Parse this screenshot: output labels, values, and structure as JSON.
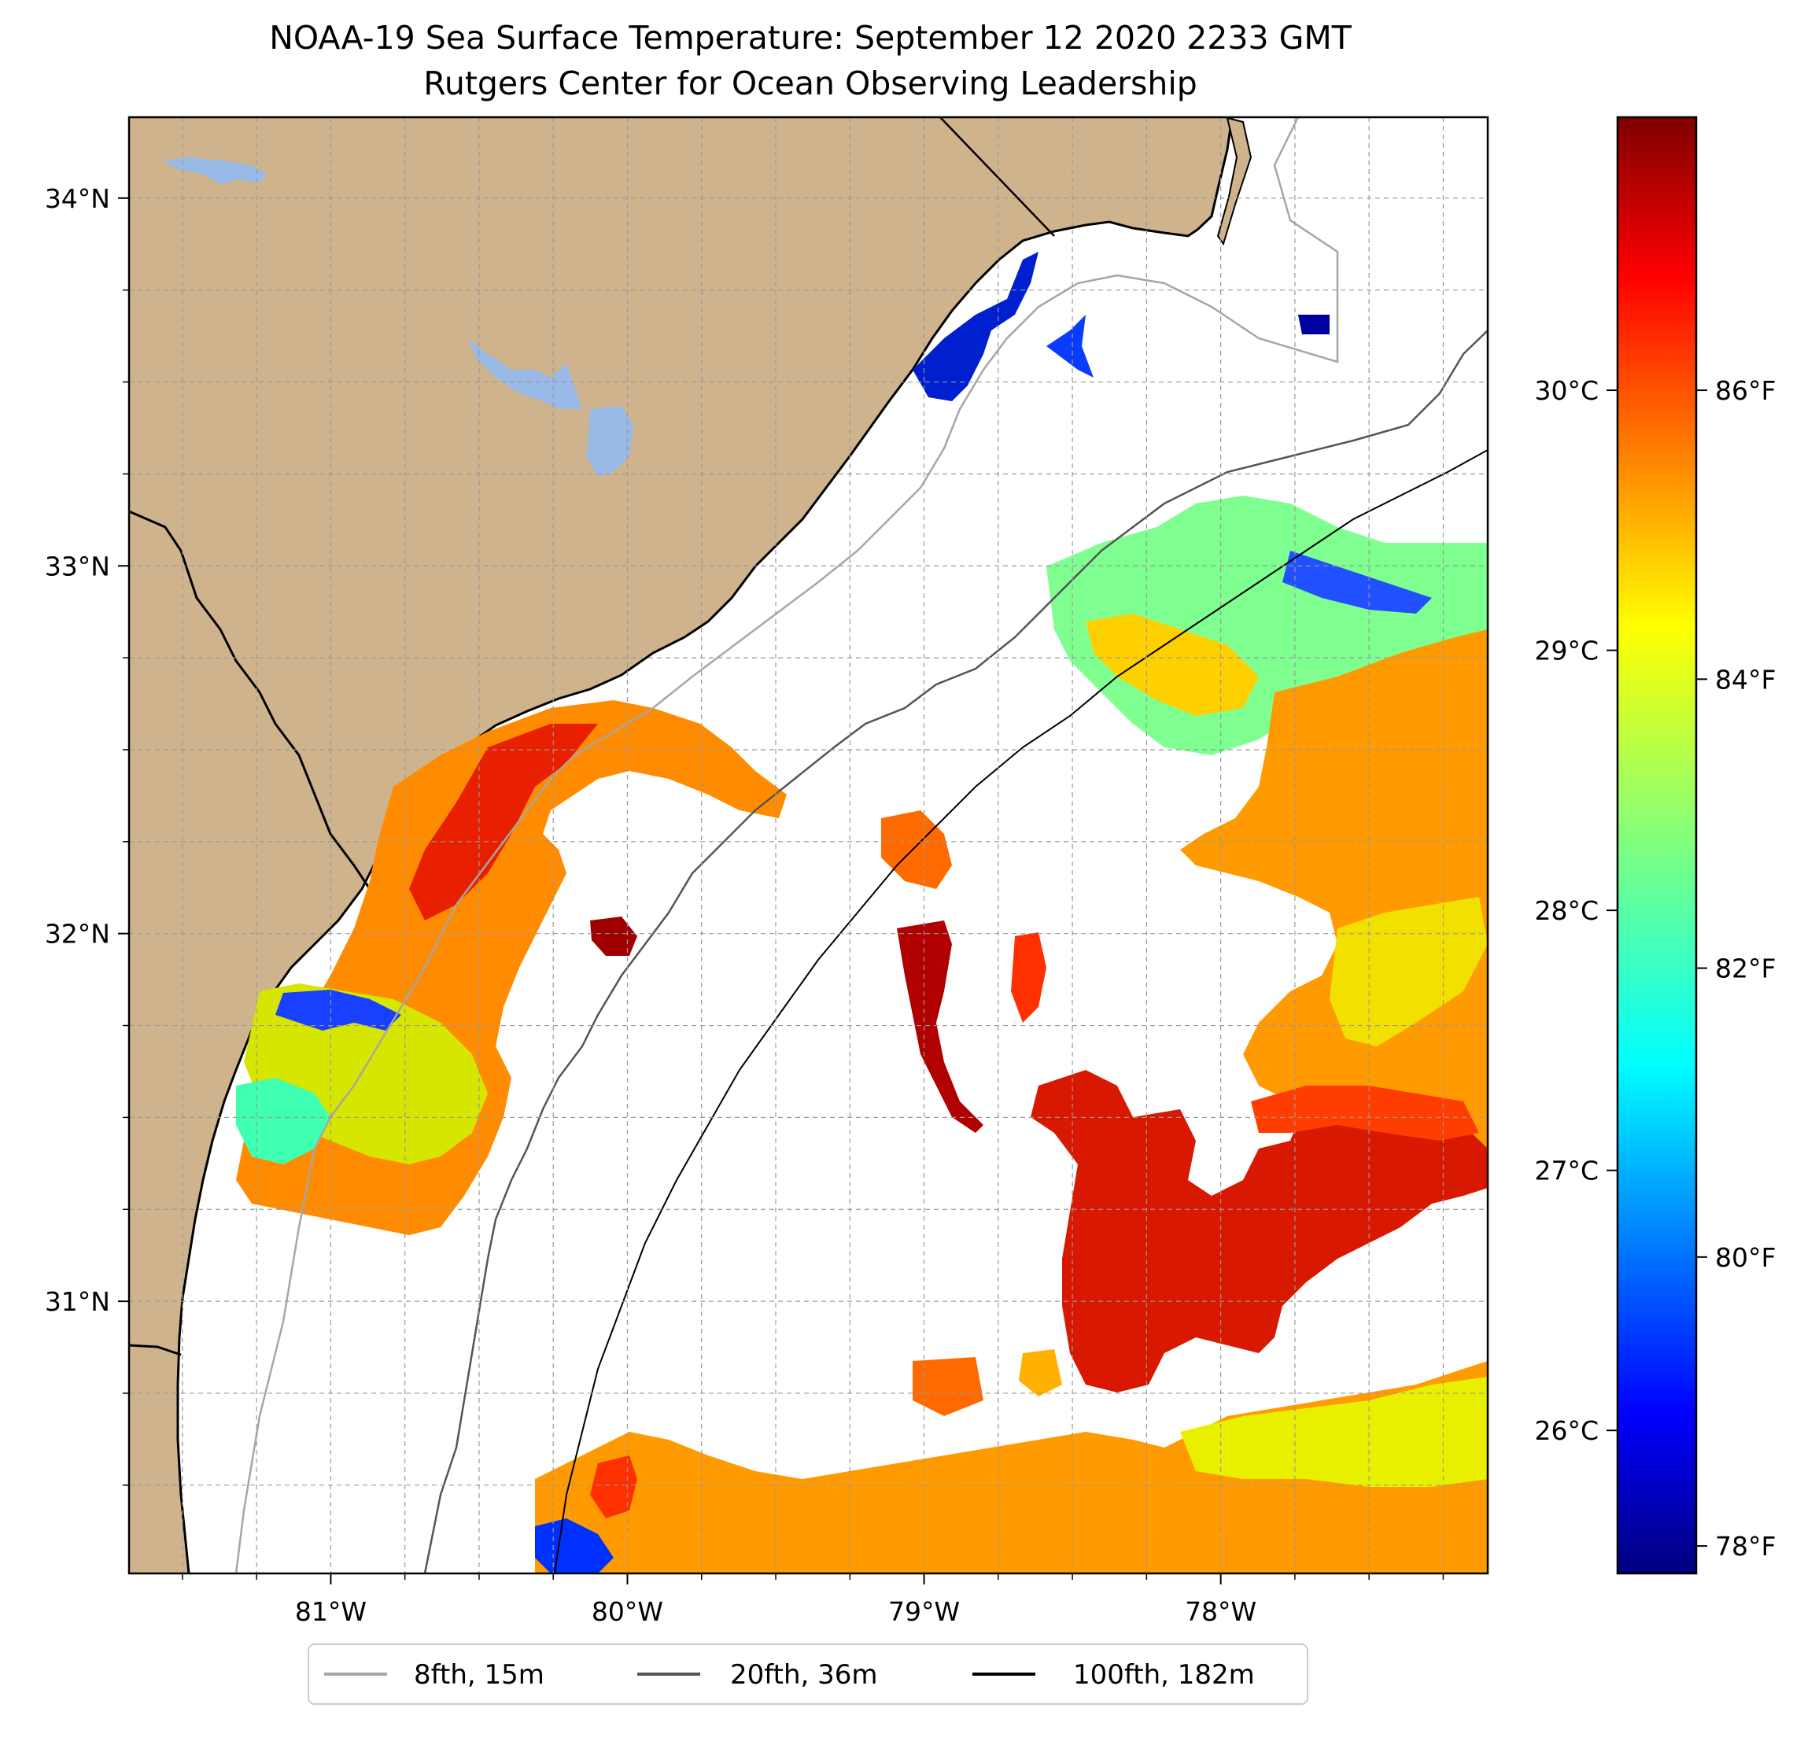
{
  "title": {
    "line1": "NOAA-19 Sea Surface Temperature: September 12 2020 2233 GMT",
    "line2": "Rutgers Center for Ocean Observing Leadership"
  },
  "map": {
    "lon_range": [
      -81.68,
      -77.1
    ],
    "lat_range": [
      30.26,
      34.22
    ],
    "grid": true,
    "land_color": "#cfb38d",
    "lake_color": "#99b9e6",
    "coast_color": "#000000",
    "lon_ticks": [
      {
        "value": -81,
        "label": "81°W"
      },
      {
        "value": -80,
        "label": "80°W"
      },
      {
        "value": -79,
        "label": "79°W"
      },
      {
        "value": -78,
        "label": "78°W"
      }
    ],
    "lat_ticks": [
      {
        "value": 34,
        "label": "34°N"
      },
      {
        "value": 33,
        "label": "33°N"
      },
      {
        "value": 32,
        "label": "32°N"
      },
      {
        "value": 31,
        "label": "31°N"
      }
    ]
  },
  "colorbar": {
    "colormap": "jet",
    "celsius_ticks": [
      {
        "value": 30,
        "label": "30°C"
      },
      {
        "value": 29,
        "label": "29°C"
      },
      {
        "value": 28,
        "label": "28°C"
      },
      {
        "value": 27,
        "label": "27°C"
      },
      {
        "value": 26,
        "label": "26°C"
      }
    ],
    "fahrenheit_ticks": [
      {
        "value": 86,
        "label": "86°F"
      },
      {
        "value": 84,
        "label": "84°F"
      },
      {
        "value": 82,
        "label": "82°F"
      },
      {
        "value": 80,
        "label": "80°F"
      },
      {
        "value": 78,
        "label": "78°F"
      }
    ]
  },
  "legend": {
    "placement": "bottom-center",
    "entries": [
      {
        "label": "8fth, 15m",
        "color": "#a6a6a6"
      },
      {
        "label": "20fth, 36m",
        "color": "#555555"
      },
      {
        "label": "100fth, 182m",
        "color": "#000000"
      }
    ]
  }
}
